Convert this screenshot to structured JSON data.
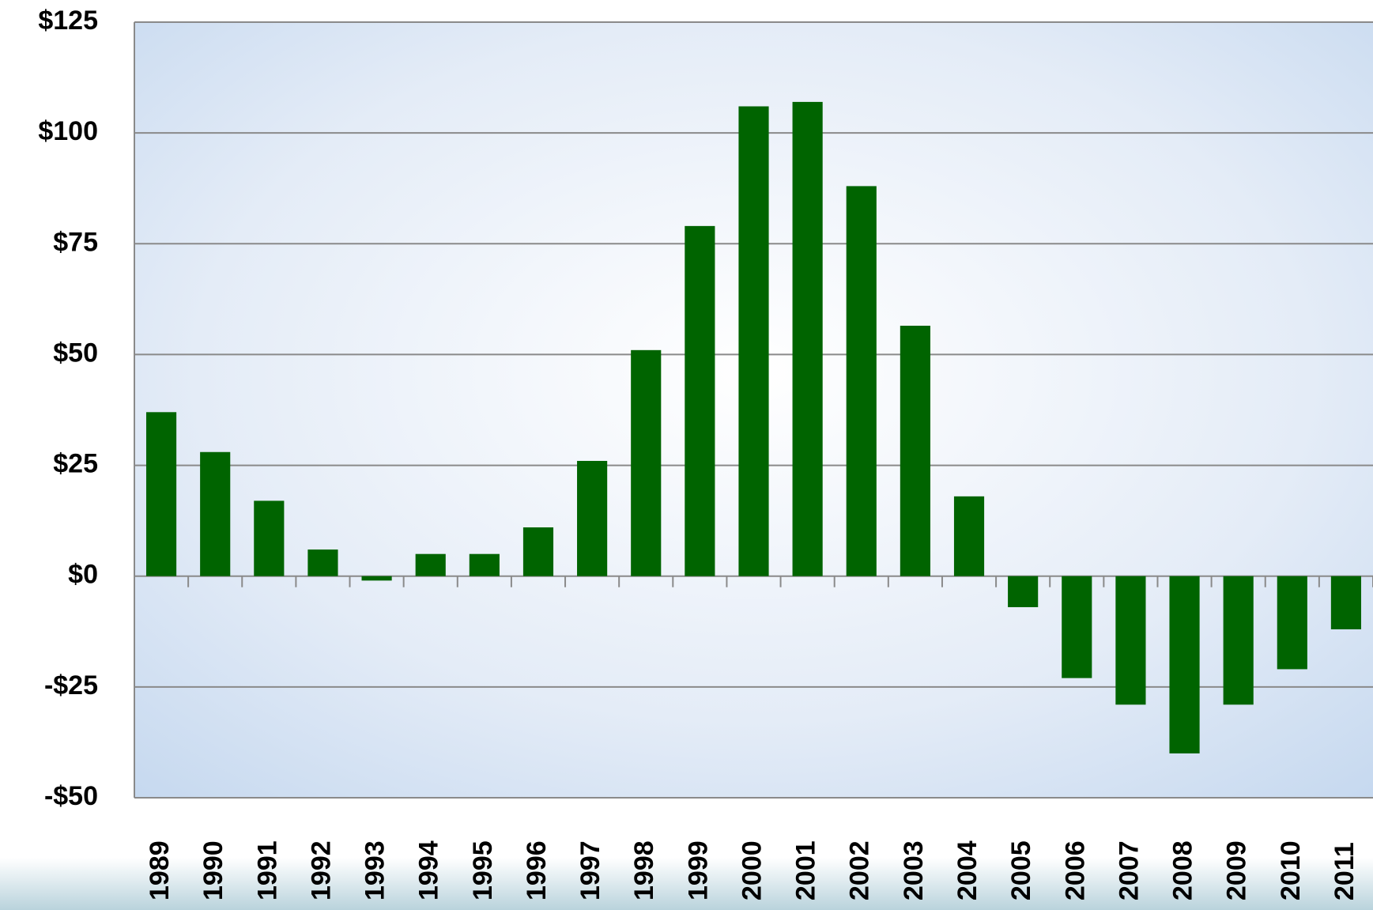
{
  "chart_data": {
    "type": "bar",
    "categories": [
      "1989",
      "1990",
      "1991",
      "1992",
      "1993",
      "1994",
      "1995",
      "1996",
      "1997",
      "1998",
      "1999",
      "2000",
      "2001",
      "2002",
      "2003",
      "2004",
      "2005",
      "2006",
      "2007",
      "2008",
      "2009",
      "2010",
      "2011"
    ],
    "values": [
      37,
      28,
      17,
      6,
      -1,
      5,
      5,
      11,
      26,
      51,
      79,
      106,
      107,
      88,
      56.5,
      18,
      -7,
      -23,
      -29,
      -40,
      -29,
      -21,
      -12
    ],
    "color": "#006400",
    "ylim": [
      -50,
      125
    ],
    "yticks": [
      {
        "value": -50,
        "label": "-$50"
      },
      {
        "value": -25,
        "label": "-$25"
      },
      {
        "value": 0,
        "label": "$0"
      },
      {
        "value": 25,
        "label": "$25"
      },
      {
        "value": 50,
        "label": "$50"
      },
      {
        "value": 75,
        "label": "$75"
      },
      {
        "value": 100,
        "label": "$100"
      },
      {
        "value": 125,
        "label": "$125"
      }
    ],
    "grid": true
  }
}
